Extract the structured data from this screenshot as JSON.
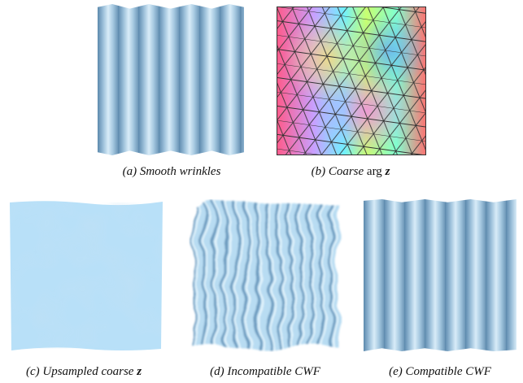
{
  "figure": {
    "panels": [
      {
        "caption": [
          "(a) Smooth wrinkles"
        ]
      },
      {
        "caption": [
          "(b) Coarse",
          "arg",
          "z"
        ]
      },
      {
        "caption": [
          "(c) Upsampled coarse",
          "z"
        ]
      },
      {
        "caption": [
          "(d) Incompatible CWF"
        ]
      },
      {
        "caption": [
          "(e) Compatible CWF"
        ]
      }
    ]
  }
}
